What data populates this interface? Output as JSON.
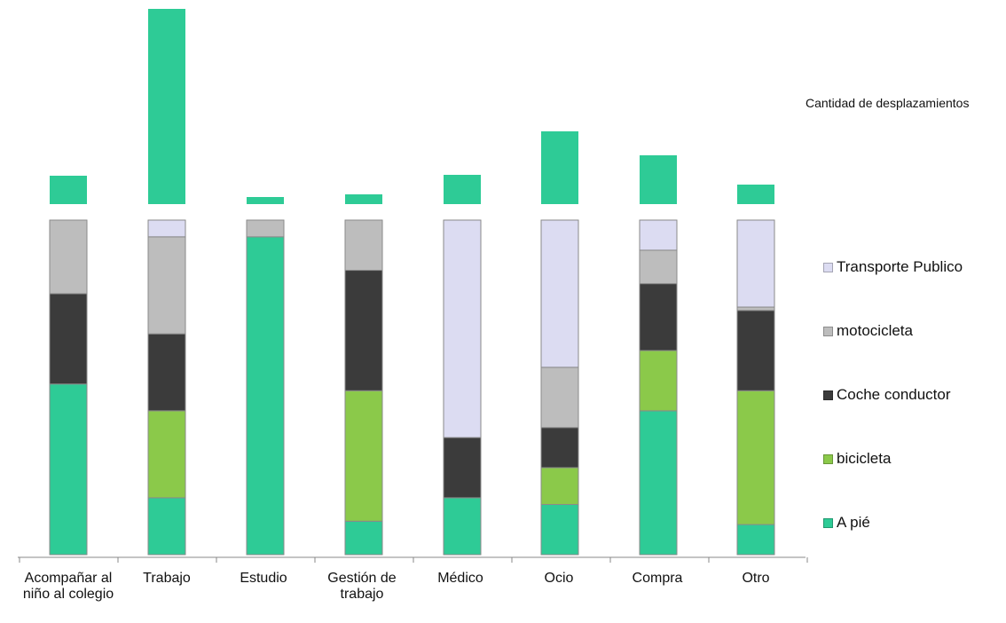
{
  "chart_data": [
    {
      "type": "bar",
      "title": "Cantidad de desplazamientos",
      "categories": [
        "Acompañar al niño al colegio",
        "Trabajo",
        "Estudio",
        "Gestión de trabajo",
        "Médico",
        "Ocio",
        "Compra",
        "Otro"
      ],
      "series": [
        {
          "name": "Cantidad de desplazamientos",
          "values": [
            32,
            220,
            8,
            11,
            33,
            82,
            55,
            22
          ]
        }
      ],
      "colors": [
        "#2ecb96"
      ]
    },
    {
      "type": "bar",
      "stacked": true,
      "percent": true,
      "categories": [
        "Acompañar al niño al colegio",
        "Trabajo",
        "Estudio",
        "Gestión de trabajo",
        "Médico",
        "Ocio",
        "Compra",
        "Otro"
      ],
      "series": [
        {
          "name": "A pié",
          "color": "#2ecb96",
          "values": [
            51,
            17,
            95,
            10,
            17,
            15,
            43,
            9
          ]
        },
        {
          "name": "bicicleta",
          "color": "#8bc94a",
          "values": [
            0,
            26,
            0,
            39,
            0,
            11,
            18,
            40
          ]
        },
        {
          "name": "Coche conductor",
          "color": "#3b3b3b",
          "values": [
            27,
            23,
            0,
            36,
            18,
            12,
            20,
            24
          ]
        },
        {
          "name": "motocicleta",
          "color": "#bdbdbd",
          "values": [
            22,
            29,
            5,
            15,
            0,
            18,
            10,
            1
          ]
        },
        {
          "name": "Transporte Publico",
          "color": "#dcdcf2",
          "values": [
            0,
            5,
            0,
            0,
            65,
            44,
            9,
            26
          ]
        }
      ],
      "ylim": [
        0,
        100
      ]
    }
  ],
  "category_labels": [
    "Acompañar al niño al colegio",
    "Trabajo",
    "Estudio",
    "Gestión de trabajo",
    "Médico",
    "Ocio",
    "Compra",
    "Otro"
  ],
  "legend": {
    "items": [
      {
        "label": "Transporte Publico",
        "color": "#dcdcf2"
      },
      {
        "label": "motocicleta",
        "color": "#bdbdbd"
      },
      {
        "label": "Coche conductor",
        "color": "#3b3b3b"
      },
      {
        "label": "bicicleta",
        "color": "#8bc94a"
      },
      {
        "label": "A pié",
        "color": "#2ecb96"
      }
    ]
  },
  "top_title": "Cantidad de desplazamientos"
}
